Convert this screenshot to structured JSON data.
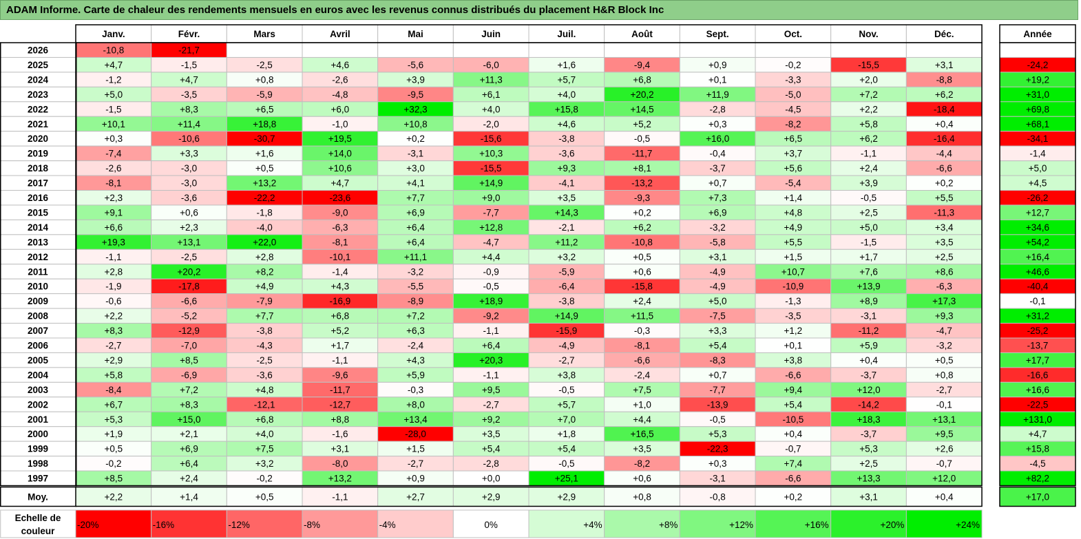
{
  "title": "ADAM Informe. Carte de chaleur des rendements mensuels en euros avec les revenus connus distribués du placement H&R Block Inc",
  "chart_data": {
    "type": "heatmap",
    "title": "ADAM Informe. Carte de chaleur des rendements mensuels en euros avec les revenus connus distribués du placement H&R Block Inc",
    "months": [
      "Janv.",
      "Févr.",
      "Mars",
      "Avril",
      "Mai",
      "Juin",
      "Juil.",
      "Août",
      "Sept.",
      "Oct.",
      "Nov.",
      "Déc."
    ],
    "year_header": "Année",
    "rows": [
      {
        "label": "2026",
        "values": [
          "-10,8",
          "-21,7",
          "",
          "",
          "",
          "",
          "",
          "",
          "",
          "",
          "",
          ""
        ],
        "year": ""
      },
      {
        "label": "2025",
        "values": [
          "+4,7",
          "-1,5",
          "-2,5",
          "+4,6",
          "-5,6",
          "-6,0",
          "+1,6",
          "-9,4",
          "+0,9",
          "-0,2",
          "-15,5",
          "+3,1"
        ],
        "year": "-24,2"
      },
      {
        "label": "2024",
        "values": [
          "-1,2",
          "+4,7",
          "+0,8",
          "-2,6",
          "+3,9",
          "+11,3",
          "+5,7",
          "+6,8",
          "+0,1",
          "-3,3",
          "+2,0",
          "-8,8"
        ],
        "year": "+19,2"
      },
      {
        "label": "2023",
        "values": [
          "+5,0",
          "-3,5",
          "-5,9",
          "-4,8",
          "-9,5",
          "+6,1",
          "+4,0",
          "+20,2",
          "+11,9",
          "-5,0",
          "+7,2",
          "+6,2"
        ],
        "year": "+31,0"
      },
      {
        "label": "2022",
        "values": [
          "-1,5",
          "+8,3",
          "+6,5",
          "+6,0",
          "+32,3",
          "+4,0",
          "+15,8",
          "+14,5",
          "-2,8",
          "-4,5",
          "+2,2",
          "-18,4"
        ],
        "year": "+69,8"
      },
      {
        "label": "2021",
        "values": [
          "+10,1",
          "+11,4",
          "+18,8",
          "-1,0",
          "+10,8",
          "-2,0",
          "+4,6",
          "+5,2",
          "+0,3",
          "-8,2",
          "+5,8",
          "+0,4"
        ],
        "year": "+68,1"
      },
      {
        "label": "2020",
        "values": [
          "+0,3",
          "-10,6",
          "-30,7",
          "+19,5",
          "+0,2",
          "-15,6",
          "-3,8",
          "-0,5",
          "+16,0",
          "+6,5",
          "+6,2",
          "-16,4"
        ],
        "year": "-34,1"
      },
      {
        "label": "2019",
        "values": [
          "-7,4",
          "+3,3",
          "+1,6",
          "+14,0",
          "-3,1",
          "+10,3",
          "-3,6",
          "-11,7",
          "-0,4",
          "+3,7",
          "-1,1",
          "-4,4"
        ],
        "year": "-1,4"
      },
      {
        "label": "2018",
        "values": [
          "-2,6",
          "-3,0",
          "+0,5",
          "+10,6",
          "+3,0",
          "-15,5",
          "+9,3",
          "+8,1",
          "-3,7",
          "+5,6",
          "+2,4",
          "-6,6"
        ],
        "year": "+5,0"
      },
      {
        "label": "2017",
        "values": [
          "-8,1",
          "-3,0",
          "+13,2",
          "+4,7",
          "+4,1",
          "+14,9",
          "-4,1",
          "-13,2",
          "+0,7",
          "-5,4",
          "+3,9",
          "+0,2"
        ],
        "year": "+4,5"
      },
      {
        "label": "2016",
        "values": [
          "+2,3",
          "-3,6",
          "-22,2",
          "-23,6",
          "+7,7",
          "+9,0",
          "+3,5",
          "-9,3",
          "+7,3",
          "+1,4",
          "-0,5",
          "+5,5"
        ],
        "year": "-26,2"
      },
      {
        "label": "2015",
        "values": [
          "+9,1",
          "+0,6",
          "-1,8",
          "-9,0",
          "+6,9",
          "-7,7",
          "+14,3",
          "+0,2",
          "+6,9",
          "+4,8",
          "+2,5",
          "-11,3"
        ],
        "year": "+12,7"
      },
      {
        "label": "2014",
        "values": [
          "+6,6",
          "+2,3",
          "-4,0",
          "-6,3",
          "+6,4",
          "+12,8",
          "-2,1",
          "+6,2",
          "-3,2",
          "+4,9",
          "+5,0",
          "+3,4"
        ],
        "year": "+34,6"
      },
      {
        "label": "2013",
        "values": [
          "+19,3",
          "+13,1",
          "+22,0",
          "-8,1",
          "+6,4",
          "-4,7",
          "+11,2",
          "-10,8",
          "-5,8",
          "+5,5",
          "-1,5",
          "+3,5"
        ],
        "year": "+54,2"
      },
      {
        "label": "2012",
        "values": [
          "-1,1",
          "-2,5",
          "+2,8",
          "-10,1",
          "+11,1",
          "+4,4",
          "+3,2",
          "+0,5",
          "+3,1",
          "+1,5",
          "+1,7",
          "+2,5"
        ],
        "year": "+16,4"
      },
      {
        "label": "2011",
        "values": [
          "+2,8",
          "+20,2",
          "+8,2",
          "-1,4",
          "-3,2",
          "-0,9",
          "-5,9",
          "+0,6",
          "-4,9",
          "+10,7",
          "+7,6",
          "+8,6"
        ],
        "year": "+46,6"
      },
      {
        "label": "2010",
        "values": [
          "-1,9",
          "-17,8",
          "+4,9",
          "+4,3",
          "-5,5",
          "-0,5",
          "-6,4",
          "-15,8",
          "-4,9",
          "-10,9",
          "+13,9",
          "-6,3"
        ],
        "year": "-40,4"
      },
      {
        "label": "2009",
        "values": [
          "-0,6",
          "-6,6",
          "-7,9",
          "-16,9",
          "-8,9",
          "+18,9",
          "-3,8",
          "+2,4",
          "+5,0",
          "-1,3",
          "+8,9",
          "+17,3"
        ],
        "year": "-0,1"
      },
      {
        "label": "2008",
        "values": [
          "+2,2",
          "-5,2",
          "+7,7",
          "+6,8",
          "+7,2",
          "-9,2",
          "+14,9",
          "+11,5",
          "-7,5",
          "-3,5",
          "-3,1",
          "+9,3"
        ],
        "year": "+31,2"
      },
      {
        "label": "2007",
        "values": [
          "+8,3",
          "-12,9",
          "-3,8",
          "+5,2",
          "+6,3",
          "-1,1",
          "-15,9",
          "-0,3",
          "+3,3",
          "+1,2",
          "-11,2",
          "-4,7"
        ],
        "year": "-25,2"
      },
      {
        "label": "2006",
        "values": [
          "-2,7",
          "-7,0",
          "-4,3",
          "+1,7",
          "-2,4",
          "+6,4",
          "-4,9",
          "-8,1",
          "+5,4",
          "+0,1",
          "+5,9",
          "-3,2"
        ],
        "year": "-13,7"
      },
      {
        "label": "2005",
        "values": [
          "+2,9",
          "+8,5",
          "-2,5",
          "-1,1",
          "+4,3",
          "+20,3",
          "-2,7",
          "-6,6",
          "-8,3",
          "+3,8",
          "+0,4",
          "+0,5"
        ],
        "year": "+17,7"
      },
      {
        "label": "2004",
        "values": [
          "+5,8",
          "-6,9",
          "-3,6",
          "-9,6",
          "+5,9",
          "-1,1",
          "+3,8",
          "-2,4",
          "+0,7",
          "-6,6",
          "-3,7",
          "+0,8"
        ],
        "year": "-16,6"
      },
      {
        "label": "2003",
        "values": [
          "-8,4",
          "+7,2",
          "+4,8",
          "-11,7",
          "-0,3",
          "+9,5",
          "-0,5",
          "+7,5",
          "-7,7",
          "+9,4",
          "+12,0",
          "-2,7"
        ],
        "year": "+16,6"
      },
      {
        "label": "2002",
        "values": [
          "+6,7",
          "+8,3",
          "-12,1",
          "-12,7",
          "+8,0",
          "-2,7",
          "+5,7",
          "+1,0",
          "-13,9",
          "+5,4",
          "-14,2",
          "-0,1"
        ],
        "year": "-22,5"
      },
      {
        "label": "2001",
        "values": [
          "+5,3",
          "+15,0",
          "+6,8",
          "+8,8",
          "+13,4",
          "+9,2",
          "+7,0",
          "+4,4",
          "-0,5",
          "-10,5",
          "+18,3",
          "+13,1"
        ],
        "year": "+131,0"
      },
      {
        "label": "2000",
        "values": [
          "+1,9",
          "+2,1",
          "+4,0",
          "-1,6",
          "-28,0",
          "+3,5",
          "+1,8",
          "+16,5",
          "+5,3",
          "+0,4",
          "-3,7",
          "+9,5"
        ],
        "year": "+4,7"
      },
      {
        "label": "1999",
        "values": [
          "+0,5",
          "+6,9",
          "+7,5",
          "+3,1",
          "+1,5",
          "+5,4",
          "+5,4",
          "+3,5",
          "-22,3",
          "-0,7",
          "+5,3",
          "+2,6"
        ],
        "year": "+15,8"
      },
      {
        "label": "1998",
        "values": [
          "-0,2",
          "+6,4",
          "+3,2",
          "-8,0",
          "-2,7",
          "-2,8",
          "-0,5",
          "-8,2",
          "+0,3",
          "+7,4",
          "+2,5",
          "-0,7"
        ],
        "year": "-4,5"
      },
      {
        "label": "1997",
        "values": [
          "+8,5",
          "+2,4",
          "-0,2",
          "+13,2",
          "+0,9",
          "+0,0",
          "+25,1",
          "+0,6",
          "-3,1",
          "-6,6",
          "+13,3",
          "+12,0"
        ],
        "year": "+82,2"
      }
    ],
    "average": {
      "label": "Moy.",
      "values": [
        "+2,2",
        "+1,4",
        "+0,5",
        "-1,1",
        "+2,7",
        "+2,9",
        "+2,9",
        "+0,8",
        "-0,8",
        "+0,2",
        "+3,1",
        "+0,4"
      ],
      "year": "+17,0"
    },
    "scale": {
      "label_line1": "Echelle de",
      "label_line2": "couleur",
      "stops": [
        {
          "label": "-20%",
          "value": -20
        },
        {
          "label": "-16%",
          "value": -16
        },
        {
          "label": "-12%",
          "value": -12
        },
        {
          "label": "-8%",
          "value": -8
        },
        {
          "label": "-4%",
          "value": -4
        },
        {
          "label": "0%",
          "value": 0
        },
        {
          "label": "+4%",
          "value": 4
        },
        {
          "label": "+8%",
          "value": 8
        },
        {
          "label": "+12%",
          "value": 12
        },
        {
          "label": "+16%",
          "value": 16
        },
        {
          "label": "+20%",
          "value": 20
        },
        {
          "label": "+24%",
          "value": 24
        }
      ]
    },
    "colors": {
      "negative_max": "#ff0000",
      "neutral": "#ffffff",
      "positive_max": "#00ee00",
      "title_bg": "#8fce8a"
    }
  }
}
